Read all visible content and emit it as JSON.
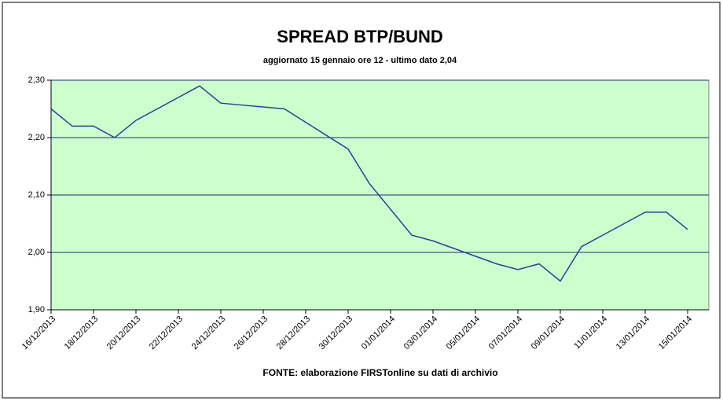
{
  "chart_data": {
    "type": "line",
    "title": "SPREAD BTP/BUND",
    "subtitle": "aggiornato 15 gennaio ore 12 - ultimo dato 2,04",
    "source": "FONTE: elaborazione FIRSTonline su dati di archivio",
    "x": [
      "16/12/2013",
      "17/12/2013",
      "18/12/2013",
      "19/12/2013",
      "20/12/2013",
      "23/12/2013",
      "24/12/2013",
      "27/12/2013",
      "30/12/2013",
      "31/12/2013",
      "02/01/2014",
      "03/01/2014",
      "06/01/2014",
      "07/01/2014",
      "08/01/2014",
      "09/01/2014",
      "10/01/2014",
      "13/01/2014",
      "14/01/2014",
      "15/01/2014"
    ],
    "series": [
      {
        "color": "#2b3f9e",
        "values": [
          2.25,
          2.22,
          2.22,
          2.2,
          2.23,
          2.29,
          2.26,
          2.25,
          2.18,
          2.12,
          2.03,
          2.02,
          1.98,
          1.97,
          1.98,
          1.95,
          2.01,
          2.07,
          2.07,
          2.04
        ]
      }
    ],
    "xlim": [
      "16/12/2013",
      "16/01/2014"
    ],
    "xticks": [
      "16/12/2013",
      "18/12/2013",
      "20/12/2013",
      "22/12/2013",
      "24/12/2013",
      "26/12/2013",
      "28/12/2013",
      "30/12/2013",
      "01/01/2014",
      "03/01/2014",
      "05/01/2014",
      "07/01/2014",
      "09/01/2014",
      "11/01/2014",
      "13/01/2014",
      "15/01/2014"
    ],
    "ylim": [
      1.9,
      2.3
    ],
    "yticks": [
      {
        "value": 1.9,
        "label": "1,90"
      },
      {
        "value": 2.0,
        "label": "2,00"
      },
      {
        "value": 2.1,
        "label": "2,10"
      },
      {
        "value": 2.2,
        "label": "2,20"
      },
      {
        "value": 2.3,
        "label": "2,30"
      }
    ],
    "grid": true
  }
}
